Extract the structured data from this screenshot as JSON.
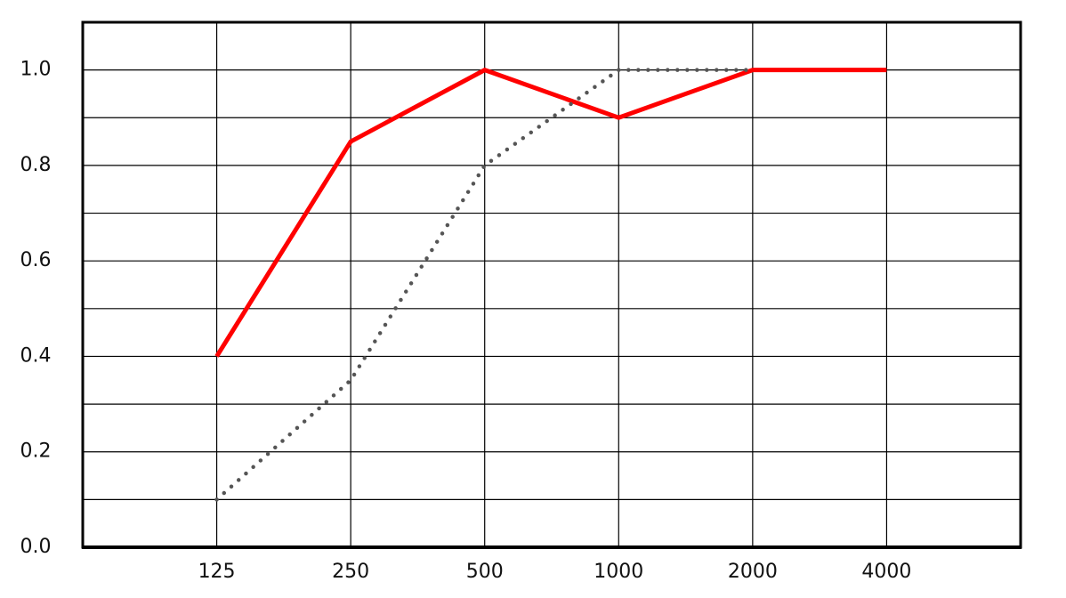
{
  "chart_data": {
    "type": "line",
    "categories": [
      "125",
      "250",
      "500",
      "1000",
      "2000",
      "4000"
    ],
    "series": [
      {
        "color": "#ff0000",
        "style": "solid",
        "values": [
          0.4,
          0.85,
          1.0,
          0.9,
          1.0,
          1.0
        ]
      },
      {
        "color": "#555555",
        "style": "dotted",
        "values": [
          0.1,
          0.35,
          0.8,
          1.0,
          1.0,
          null
        ]
      }
    ],
    "ylim": [
      0,
      1.1
    ],
    "yticks": [
      {
        "value": 0,
        "label": "0.0"
      },
      0.2,
      0.4,
      0.6,
      0.8,
      {
        "value": 1,
        "label": "1.0"
      }
    ],
    "minor_yticks": [
      0.1,
      0.3,
      0.5,
      0.7,
      0.9
    ],
    "grid": true
  }
}
